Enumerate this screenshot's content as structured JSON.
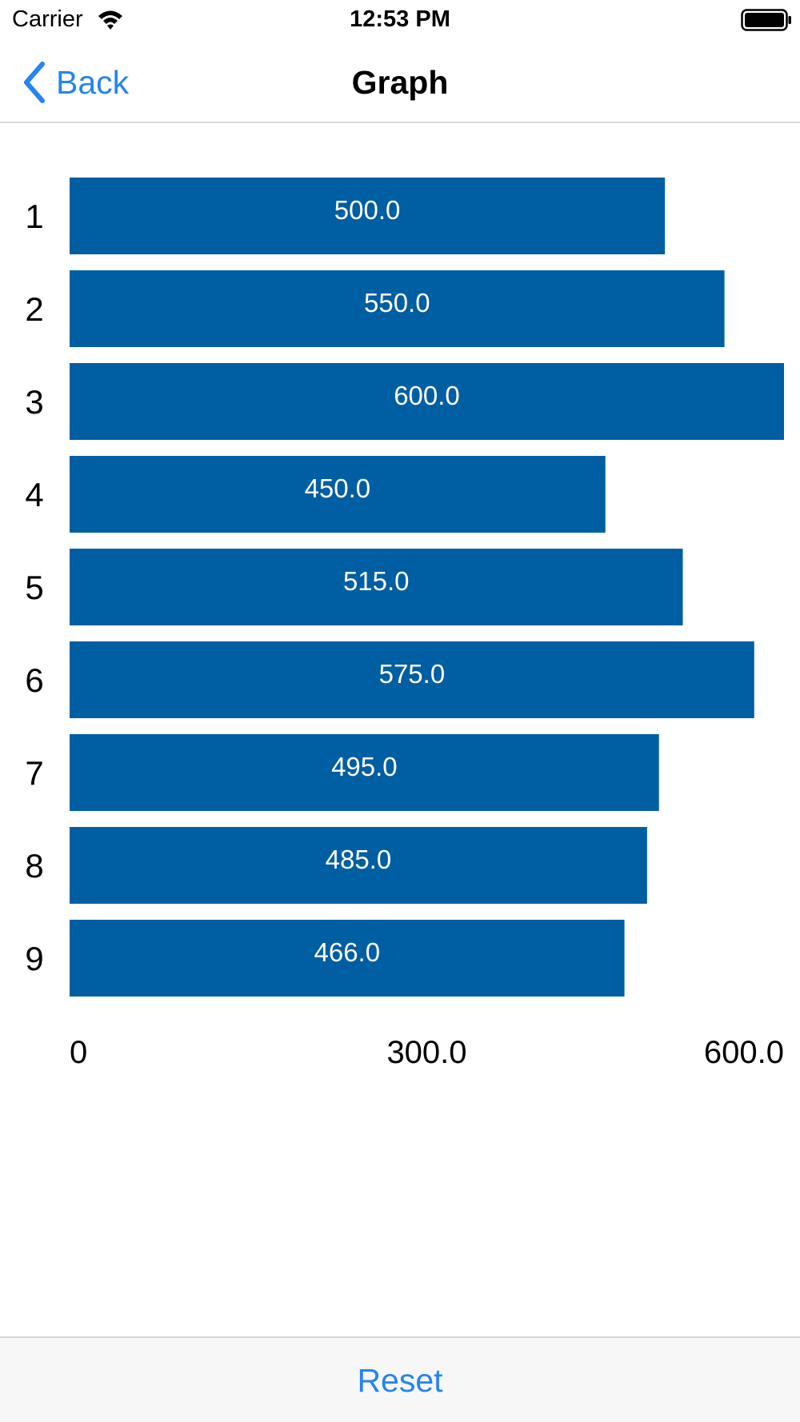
{
  "status_bar": {
    "carrier": "Carrier",
    "time": "12:53 PM",
    "wifi_icon": "wifi-icon",
    "battery_icon": "battery-icon"
  },
  "nav": {
    "back_label": "Back",
    "back_icon": "chevron-left-icon",
    "title": "Graph"
  },
  "toolbar": {
    "reset_label": "Reset"
  },
  "colors": {
    "bar": "#005ea2",
    "accent": "#2584f2",
    "bar_text": "#ffffff"
  },
  "chart_data": {
    "type": "bar",
    "orientation": "horizontal",
    "categories": [
      "1",
      "2",
      "3",
      "4",
      "5",
      "6",
      "7",
      "8",
      "9"
    ],
    "values": [
      500,
      550,
      600,
      450,
      515,
      575,
      495,
      485,
      466
    ],
    "value_labels": [
      "500.0",
      "550.0",
      "600.0",
      "450.0",
      "515.0",
      "575.0",
      "495.0",
      "485.0",
      "466.0"
    ],
    "x_ticks": [
      0,
      300,
      600
    ],
    "x_tick_labels": [
      "0",
      "300.0",
      "600.0"
    ],
    "xlim": [
      0,
      600
    ],
    "grid": false,
    "legend": false
  }
}
